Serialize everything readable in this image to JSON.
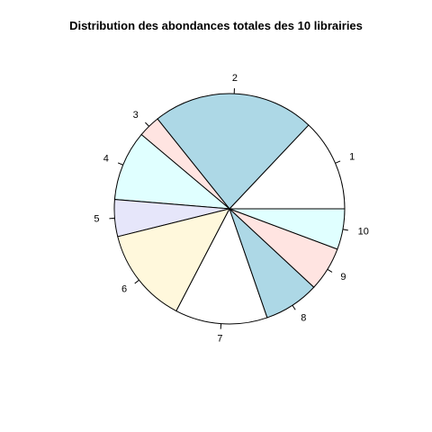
{
  "chart_data": {
    "type": "pie",
    "title": "Distribution des abondances totales des 10 librairies",
    "categories": [
      "1",
      "2",
      "3",
      "4",
      "5",
      "6",
      "7",
      "8",
      "9",
      "10"
    ],
    "values": [
      12.5,
      22.0,
      3.0,
      9.5,
      5.0,
      13.0,
      12.5,
      7.5,
      6.0,
      5.5
    ],
    "colors": [
      "#FFFFFF",
      "#ADD8E6",
      "#FFE4E1",
      "#E0FFFF",
      "#E6E6FA",
      "#FFF8DC",
      "#FFFFFF",
      "#ADD8E6",
      "#FFE4E1",
      "#E0FFFF"
    ],
    "start": "3 o'clock",
    "direction": "counterclockwise",
    "legend": "none",
    "grid": false
  }
}
